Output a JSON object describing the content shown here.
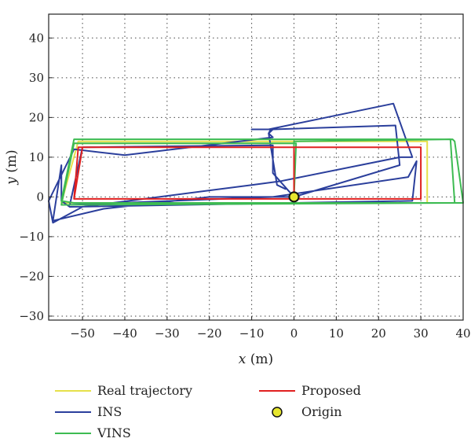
{
  "chart_data": {
    "type": "line",
    "title": "",
    "xlabel_var": "x",
    "xlabel_unit": " (m)",
    "ylabel_var": "y",
    "ylabel_unit": " (m)",
    "xlim": [
      -58,
      40
    ],
    "ylim": [
      -31,
      46
    ],
    "xticks": [
      -50,
      -40,
      -30,
      -20,
      -10,
      0,
      10,
      20,
      30,
      40
    ],
    "yticks": [
      -30,
      -20,
      -10,
      0,
      10,
      20,
      30,
      40
    ],
    "xtick_labels": [
      "−50",
      "−40",
      "−30",
      "−20",
      "−10",
      "0",
      "10",
      "20",
      "30",
      "40"
    ],
    "ytick_labels": [
      "−30",
      "−20",
      "−10",
      "0",
      "10",
      "20",
      "30",
      "40"
    ],
    "grid": true,
    "grid_style": "dotted",
    "legend_position": "below plot",
    "series": [
      {
        "name": "Real trajectory",
        "color": "#e6e04a",
        "points": [
          [
            0,
            0
          ],
          [
            0,
            13.5
          ],
          [
            -52,
            13.5
          ],
          [
            -55,
            -1.5
          ],
          [
            31.5,
            -1.5
          ],
          [
            31.5,
            14
          ],
          [
            -51,
            14
          ],
          [
            -55,
            -1.5
          ]
        ]
      },
      {
        "name": "INS",
        "color": "#2b3f9c",
        "points": [
          [
            0,
            0
          ],
          [
            -5,
            6
          ],
          [
            -5,
            13
          ],
          [
            -50,
            12.5
          ],
          [
            -53,
            -2
          ],
          [
            -5,
            0
          ],
          [
            27,
            5
          ],
          [
            29,
            9
          ],
          [
            28,
            -1
          ],
          [
            -53,
            -2.5
          ],
          [
            -55,
            -1
          ],
          [
            -55,
            8
          ],
          [
            -57,
            -6
          ],
          [
            -45,
            -3
          ],
          [
            -20,
            0
          ],
          [
            0,
            0
          ],
          [
            25,
            8
          ],
          [
            24,
            18
          ],
          [
            -5,
            17
          ],
          [
            -7,
            17
          ],
          [
            -5,
            17
          ],
          [
            -6,
            16
          ],
          [
            -5,
            15
          ],
          [
            -40,
            10.5
          ],
          [
            -52,
            12
          ],
          [
            -58,
            -1
          ],
          [
            -57,
            -6.5
          ],
          [
            -50,
            -2.5
          ],
          [
            -10,
            3
          ],
          [
            -3,
            4
          ],
          [
            25,
            10
          ],
          [
            28,
            10
          ],
          [
            23.5,
            23.5
          ],
          [
            -6,
            17
          ],
          [
            -10,
            17
          ],
          [
            -5.5,
            17
          ],
          [
            -6,
            16
          ],
          [
            -4,
            3
          ],
          [
            -2,
            2
          ]
        ]
      },
      {
        "name": "VINS",
        "color": "#3dbb52",
        "points": [
          [
            0,
            0
          ],
          [
            0.5,
            13.5
          ],
          [
            -52,
            13.5
          ],
          [
            -55,
            -2
          ],
          [
            38,
            -1.5
          ],
          [
            37,
            14.5
          ],
          [
            -52,
            14.5
          ],
          [
            -55,
            -1
          ],
          [
            -52,
            -1.5
          ],
          [
            40,
            -1.5
          ],
          [
            38,
            14
          ],
          [
            37.5,
            14.5
          ],
          [
            0,
            14
          ],
          [
            0,
            0
          ]
        ]
      },
      {
        "name": "Proposed",
        "color": "#e02020",
        "points": [
          [
            0,
            0
          ],
          [
            0,
            12.5
          ],
          [
            -51,
            12.5
          ],
          [
            -52,
            -0.5
          ],
          [
            30,
            -0.5
          ],
          [
            30,
            12.5
          ],
          [
            -50,
            12.5
          ],
          [
            -52,
            -0.5
          ]
        ]
      }
    ],
    "markers": [
      {
        "name": "Origin",
        "x": 0,
        "y": 0,
        "fill": "#e6e62e",
        "stroke": "#111111"
      }
    ],
    "legend": [
      {
        "label": "Real trajectory",
        "color": "#e6e04a",
        "kind": "line"
      },
      {
        "label": "INS",
        "color": "#2b3f9c",
        "kind": "line"
      },
      {
        "label": "VINS",
        "color": "#3dbb52",
        "kind": "line"
      },
      {
        "label": "Proposed",
        "color": "#e02020",
        "kind": "line"
      },
      {
        "label": "Origin",
        "color": "#e6e62e",
        "kind": "marker"
      }
    ]
  }
}
